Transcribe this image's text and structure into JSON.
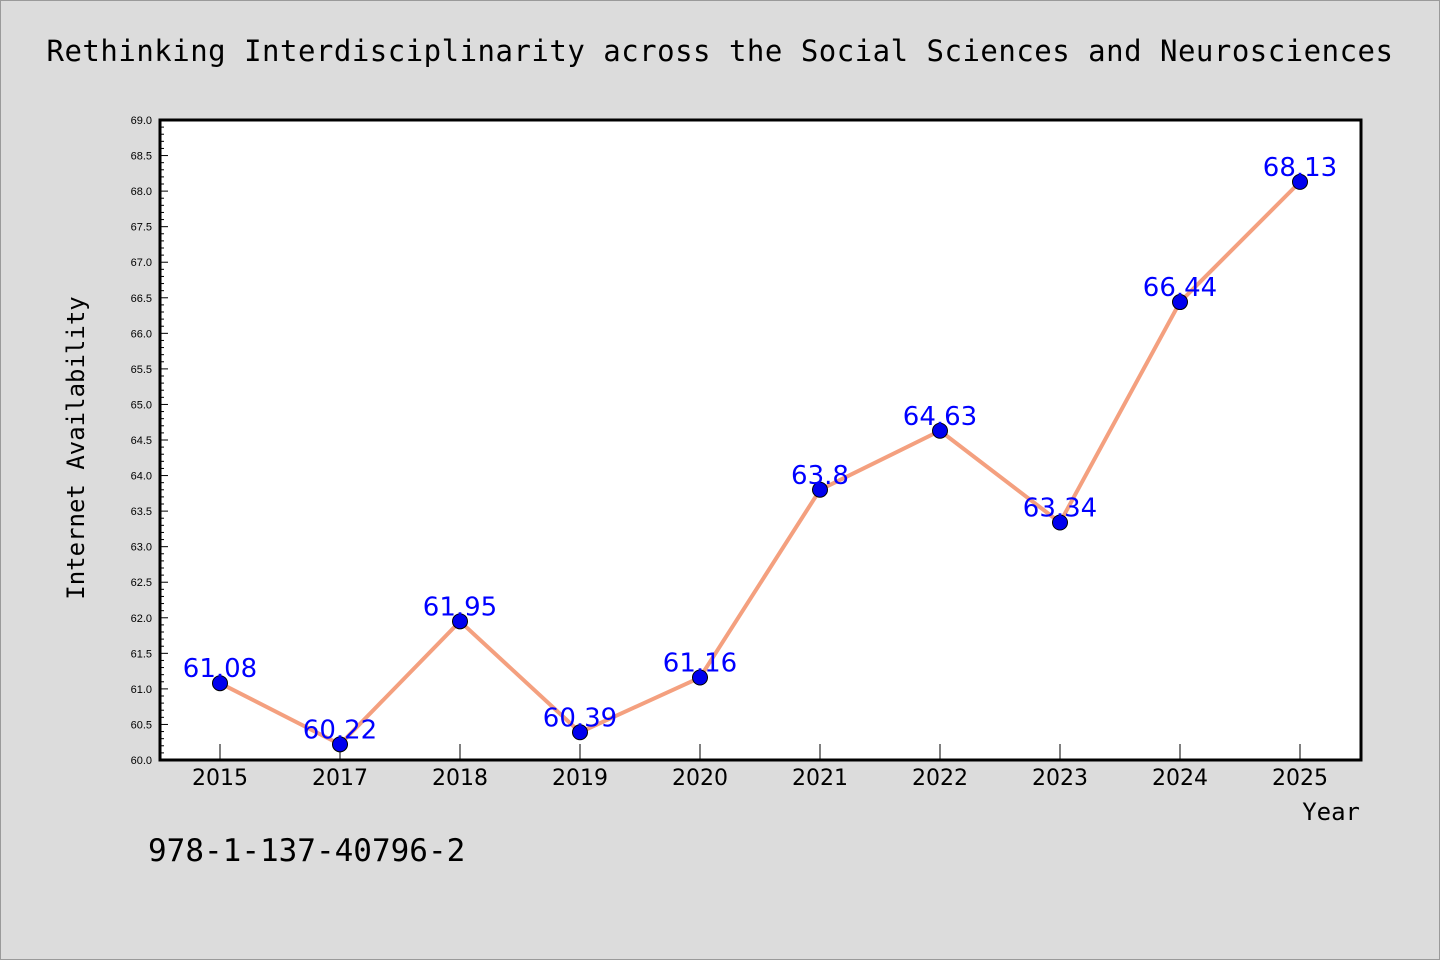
{
  "title": "Rethinking Interdisciplinarity across the Social Sciences and Neurosciences",
  "footer_code": "978-1-137-40796-2",
  "chart_data": {
    "type": "line",
    "title": "Rethinking Interdisciplinarity across the Social Sciences and Neurosciences",
    "xlabel": "Year",
    "ylabel": "Internet Availability",
    "categories": [
      "2015",
      "2017",
      "2018",
      "2019",
      "2020",
      "2021",
      "2022",
      "2023",
      "2024",
      "2025"
    ],
    "values": [
      61.08,
      60.22,
      61.95,
      60.39,
      61.16,
      63.8,
      64.63,
      63.34,
      66.44,
      68.13
    ],
    "data_labels": [
      "61.08",
      "60.22",
      "61.95",
      "60.39",
      "61.16",
      "63.8",
      "64.63",
      "63.34",
      "66.44",
      "68.13"
    ],
    "ylim": [
      60.0,
      69.0
    ],
    "yticks": [
      "60.0",
      "60.5",
      "61.0",
      "61.5",
      "62.0",
      "62.5",
      "63.0",
      "63.5",
      "64.0",
      "64.5",
      "65.0",
      "65.5",
      "66.0",
      "66.5",
      "67.0",
      "67.5",
      "68.0",
      "68.5",
      "69.0"
    ],
    "grid": false,
    "line_color": "#f4a07f",
    "marker_color": "#0000ee",
    "label_color": "#0000ff",
    "background": "#dcdcdc"
  }
}
